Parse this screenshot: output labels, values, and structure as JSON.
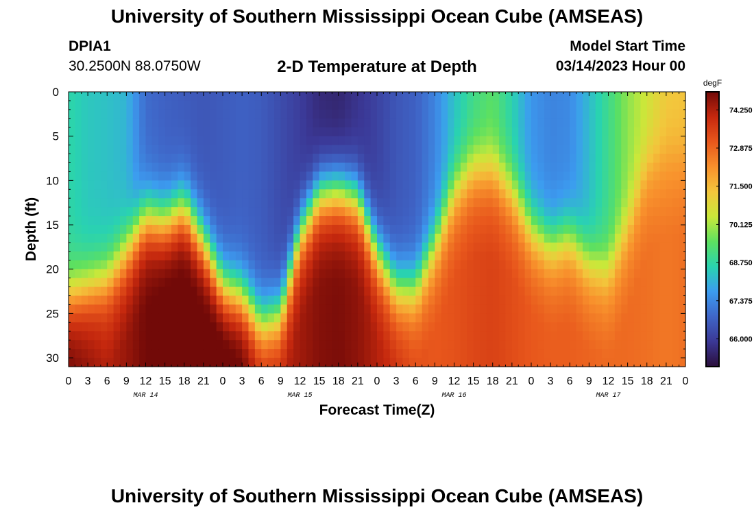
{
  "header": {
    "title": "University of Southern Mississippi Ocean Cube (AMSEAS)",
    "station_id": "DPIA1",
    "station_coords": "30.2500N  88.0750W",
    "plot_title": "2-D Temperature at Depth",
    "model_start_label": "Model Start Time",
    "model_start_value": "03/14/2023 Hour 00"
  },
  "footer": {
    "title": "University of Southern Mississippi Ocean Cube (AMSEAS)"
  },
  "chart_data": {
    "type": "heatmap",
    "title": "2-D Temperature at Depth",
    "xlabel": "Forecast Time(Z)",
    "ylabel": "Depth (ft)",
    "x_ticks": [
      "0",
      "3",
      "6",
      "9",
      "12",
      "15",
      "18",
      "21",
      "0",
      "3",
      "6",
      "9",
      "12",
      "15",
      "18",
      "21",
      "0",
      "3",
      "6",
      "9",
      "12",
      "15",
      "18",
      "21",
      "0",
      "3",
      "6",
      "9",
      "12",
      "15",
      "18",
      "21",
      "0"
    ],
    "date_labels": [
      {
        "label": "MAR 14",
        "hour": 12
      },
      {
        "label": "MAR 15",
        "hour": 36
      },
      {
        "label": "MAR 16",
        "hour": 60
      },
      {
        "label": "MAR 17",
        "hour": 84
      }
    ],
    "x_range": [
      0,
      96
    ],
    "y_ticks": [
      0,
      5,
      10,
      15,
      20,
      25,
      30
    ],
    "y_range": [
      0,
      31
    ],
    "colorbar": {
      "unit": "degF",
      "ticks": [
        "74.250",
        "72.875",
        "71.500",
        "70.125",
        "68.750",
        "67.375",
        "66.000"
      ],
      "range": [
        65.0,
        74.9
      ],
      "colors": [
        "#2a0e3a",
        "#3b3896",
        "#3f66c8",
        "#3c9cf0",
        "#29d3b0",
        "#5de060",
        "#c9e83a",
        "#f3c63c",
        "#f8902c",
        "#e8571c",
        "#c5280e",
        "#720a08"
      ]
    },
    "hours": [
      0,
      3,
      6,
      9,
      12,
      15,
      18,
      21,
      24,
      27,
      30,
      33,
      36,
      39,
      42,
      45,
      48,
      51,
      54,
      57,
      60,
      63,
      66,
      69,
      72,
      75,
      78,
      81,
      84,
      87,
      90,
      93,
      96
    ],
    "thermocline_depth_ft": [
      23,
      22,
      21,
      18,
      14,
      14.5,
      13,
      17,
      22,
      23,
      26,
      25,
      16,
      11.5,
      11,
      12,
      18,
      22,
      22,
      17,
      11,
      8.5,
      8.5,
      11,
      15,
      17,
      16,
      19,
      20,
      15,
      8,
      6,
      6
    ],
    "surface_temp_degF": [
      68.7,
      68.4,
      68.3,
      68.1,
      66.9,
      66.7,
      66.6,
      66.5,
      66.6,
      66.7,
      66.6,
      66.3,
      66.0,
      65.6,
      65.5,
      65.8,
      66.1,
      66.5,
      66.7,
      67.3,
      68.3,
      69.0,
      69.4,
      68.6,
      67.6,
      67.3,
      67.4,
      68.2,
      69.0,
      69.9,
      70.5,
      71.2,
      71.3
    ],
    "deep_temp_degF": [
      74.4,
      74.0,
      73.6,
      73.9,
      74.3,
      74.6,
      74.6,
      74.6,
      74.8,
      74.5,
      73.5,
      73.5,
      73.8,
      74.1,
      74.2,
      74.0,
      73.6,
      73.2,
      72.7,
      72.5,
      72.6,
      72.8,
      72.9,
      72.7,
      72.5,
      72.4,
      72.4,
      72.3,
      72.2,
      72.2,
      72.1,
      72.0,
      72.1
    ]
  }
}
